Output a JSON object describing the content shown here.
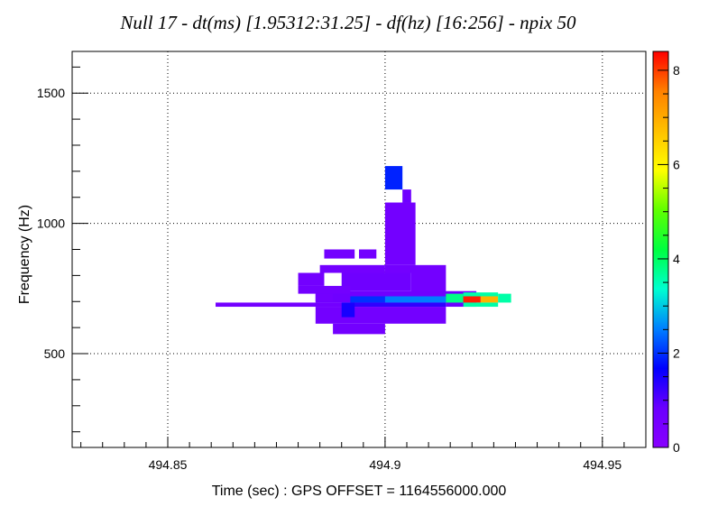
{
  "chart_data": {
    "type": "heatmap",
    "title": "Null  17 - dt(ms) [1.95312:31.25] - df(hz) [16:256] - npix 50",
    "xlabel": "Time (sec) : GPS OFFSET = 1164556000.000",
    "ylabel": "Frequency (Hz)",
    "xlim": [
      494.828,
      494.96
    ],
    "ylim": [
      140,
      1660
    ],
    "x_ticks": [
      494.85,
      494.9,
      494.95
    ],
    "x_tick_labels": [
      "494.85",
      "494.9",
      "494.95"
    ],
    "y_ticks": [
      500,
      1000,
      1500
    ],
    "y_tick_labels": [
      "500",
      "1000",
      "1500"
    ],
    "colorbar": {
      "range": [
        0,
        8.4
      ],
      "ticks": [
        0,
        2,
        4,
        6,
        8
      ],
      "tick_labels": [
        "0",
        "2",
        "4",
        "6",
        "8"
      ]
    },
    "grid": true,
    "cells": [
      {
        "x0": 494.861,
        "x1": 494.892,
        "y0": 680,
        "y1": 696,
        "v": 0.6
      },
      {
        "x0": 494.892,
        "x1": 494.914,
        "y0": 680,
        "y1": 696,
        "v": 1.3
      },
      {
        "x0": 494.914,
        "x1": 494.921,
        "y0": 680,
        "y1": 696,
        "v": 0.8
      },
      {
        "x0": 494.885,
        "x1": 494.9,
        "y0": 810,
        "y1": 840,
        "v": 0.6
      },
      {
        "x0": 494.9,
        "x1": 494.914,
        "y0": 810,
        "y1": 840,
        "v": 0.6
      },
      {
        "x0": 494.88,
        "x1": 494.886,
        "y0": 760,
        "y1": 810,
        "v": 0.6
      },
      {
        "x0": 494.89,
        "x1": 494.906,
        "y0": 740,
        "y1": 810,
        "v": 0.7
      },
      {
        "x0": 494.906,
        "x1": 494.914,
        "y0": 720,
        "y1": 810,
        "v": 0.6
      },
      {
        "x0": 494.884,
        "x1": 494.921,
        "y0": 696,
        "y1": 740,
        "v": 0.7
      },
      {
        "x0": 494.884,
        "x1": 494.914,
        "y0": 615,
        "y1": 680,
        "v": 0.6
      },
      {
        "x0": 494.888,
        "x1": 494.9,
        "y0": 575,
        "y1": 615,
        "v": 0.6
      },
      {
        "x0": 494.9,
        "x1": 494.907,
        "y0": 840,
        "y1": 1080,
        "v": 0.6
      },
      {
        "x0": 494.904,
        "x1": 494.906,
        "y0": 1080,
        "y1": 1130,
        "v": 0.7
      },
      {
        "x0": 494.9,
        "x1": 494.904,
        "y0": 1130,
        "y1": 1220,
        "v": 1.9
      },
      {
        "x0": 494.886,
        "x1": 494.893,
        "y0": 865,
        "y1": 900,
        "v": 0.6
      },
      {
        "x0": 494.894,
        "x1": 494.898,
        "y0": 865,
        "y1": 900,
        "v": 0.6
      },
      {
        "x0": 494.88,
        "x1": 494.892,
        "y0": 730,
        "y1": 760,
        "v": 0.6
      },
      {
        "x0": 494.884,
        "x1": 494.888,
        "y0": 700,
        "y1": 730,
        "v": 0.6
      },
      {
        "x0": 494.892,
        "x1": 494.9,
        "y0": 696,
        "y1": 720,
        "v": 2.0
      },
      {
        "x0": 494.9,
        "x1": 494.914,
        "y0": 696,
        "y1": 720,
        "v": 2.5
      },
      {
        "x0": 494.89,
        "x1": 494.893,
        "y0": 640,
        "y1": 696,
        "v": 1.5
      },
      {
        "x0": 494.914,
        "x1": 494.918,
        "y0": 696,
        "y1": 730,
        "v": 3.8
      },
      {
        "x0": 494.918,
        "x1": 494.922,
        "y0": 696,
        "y1": 720,
        "v": 8.2
      },
      {
        "x0": 494.922,
        "x1": 494.926,
        "y0": 696,
        "y1": 720,
        "v": 6.9
      },
      {
        "x0": 494.926,
        "x1": 494.929,
        "y0": 696,
        "y1": 730,
        "v": 3.6
      },
      {
        "x0": 494.918,
        "x1": 494.926,
        "y0": 720,
        "y1": 735,
        "v": 3.6
      },
      {
        "x0": 494.918,
        "x1": 494.926,
        "y0": 680,
        "y1": 696,
        "v": 3.6
      }
    ]
  }
}
